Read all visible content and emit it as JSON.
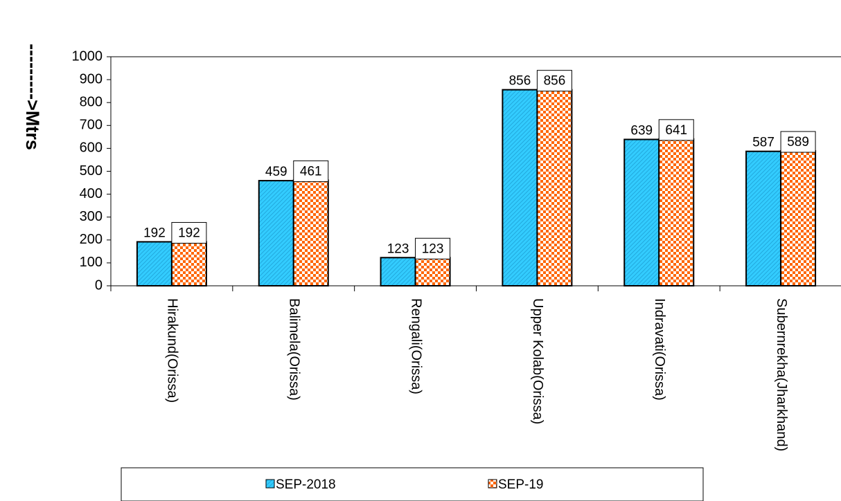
{
  "chart_data": {
    "type": "bar",
    "title": "",
    "xlabel": "",
    "ylabel": "--------->Mtrs",
    "ylim": [
      0,
      1000
    ],
    "ytick_step": 100,
    "yticks": [
      "0",
      "100",
      "200",
      "300",
      "400",
      "500",
      "600",
      "700",
      "800",
      "900",
      "1000"
    ],
    "grid": false,
    "legend_position": "bottom",
    "categories": [
      "Hirakund(Orissa)",
      "Balimela(Orissa)",
      "Rengali(Orissa)",
      "Upper Kolab(Orissa)",
      "Indravati(Orissa)",
      "Subernrekha(Jharkhand)"
    ],
    "series": [
      {
        "name": "SEP-2018",
        "values": [
          192,
          459,
          123,
          856,
          639,
          587
        ],
        "color": "#33ccff",
        "pattern": "diagonal-hatch",
        "boxed_labels": false
      },
      {
        "name": "SEP-19",
        "values": [
          192,
          461,
          123,
          856,
          641,
          589
        ],
        "color": "#ff6600",
        "pattern": "checker",
        "boxed_labels": true
      }
    ]
  }
}
